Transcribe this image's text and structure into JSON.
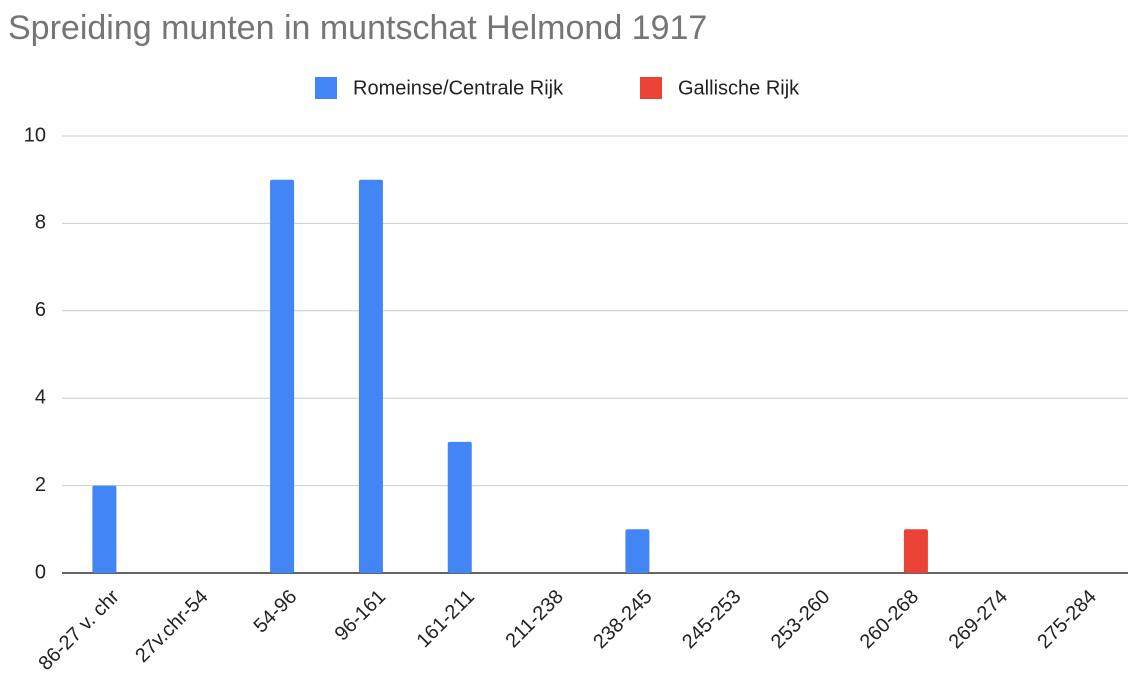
{
  "chart_data": {
    "type": "bar",
    "title": "Spreiding munten in muntschat Helmond 1917",
    "categories": [
      "86-27 v. chr",
      "27v.chr-54",
      "54-96",
      "96-161",
      "161-211",
      "211-238",
      "238-245",
      "245-253",
      "253-260",
      "260-268",
      "269-274",
      "275-284"
    ],
    "series": [
      {
        "name": "Romeinse/Centrale Rijk",
        "color": "#4285f4",
        "values": [
          2,
          0,
          9,
          9,
          3,
          0,
          1,
          0,
          0,
          0,
          0,
          0
        ]
      },
      {
        "name": "Gallische Rijk",
        "color": "#ea4335",
        "values": [
          0,
          0,
          0,
          0,
          0,
          0,
          0,
          0,
          0,
          1,
          0,
          0
        ]
      }
    ],
    "ylim": [
      0,
      10
    ],
    "yticks": [
      0,
      2,
      4,
      6,
      8,
      10
    ],
    "grid": true,
    "legend": "top"
  }
}
